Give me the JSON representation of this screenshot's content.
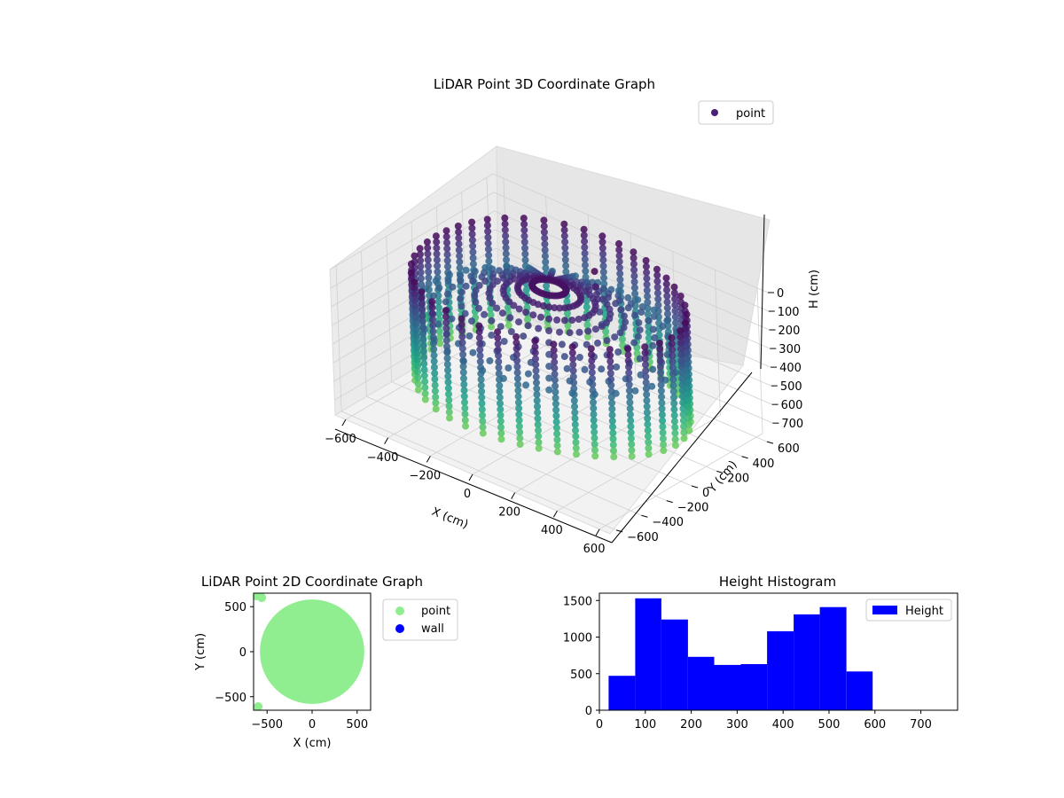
{
  "figure": {
    "background": "#ffffff"
  },
  "chart_data": [
    {
      "type": "scatter",
      "projection": "3d",
      "title": "LiDAR Point 3D Coordinate Graph",
      "xlabel": "X (cm)",
      "ylabel": "Y (cm)",
      "zlabel": "H (cm)",
      "xlim": [
        -650,
        650
      ],
      "ylim": [
        -650,
        650
      ],
      "zlim": [
        780,
        0
      ],
      "z_inverted": true,
      "xticks": [
        -600,
        -400,
        -200,
        0,
        200,
        400,
        600
      ],
      "yticks": [
        -600,
        -400,
        -200,
        0,
        200,
        400,
        600
      ],
      "zticks": [
        0,
        100,
        200,
        300,
        400,
        500,
        600,
        700
      ],
      "legend": {
        "entries": [
          "point"
        ],
        "position": "top-right"
      },
      "colormap": "viridis",
      "marker_color": "#482173",
      "grid": true,
      "series": [
        {
          "name": "point",
          "shape": "cylindrical ring of radius ~580 cm, height range 20–600 cm, sampled in 44 vertical scan columns, plus inward radial scan rays and a few outlier points",
          "ring_radius": 580,
          "columns": 44,
          "h_range": [
            20,
            600
          ],
          "outliers": [
            {
              "x": 80,
              "y": 230,
              "h": 0
            },
            {
              "x": 100,
              "y": 200,
              "h": 60
            },
            {
              "x": 120,
              "y": 180,
              "h": 110
            },
            {
              "x": 140,
              "y": 160,
              "h": 160
            },
            {
              "x": 160,
              "y": 140,
              "h": 210
            },
            {
              "x": -650,
              "y": 100,
              "h": 560
            },
            {
              "x": -640,
              "y": 60,
              "h": 520
            },
            {
              "x": -600,
              "y": 50,
              "h": 490
            }
          ]
        }
      ]
    },
    {
      "type": "scatter",
      "title": "LiDAR Point 2D Coordinate Graph",
      "xlabel": "X (cm)",
      "ylabel": "Y (cm)",
      "xlim": [
        -650,
        650
      ],
      "ylim": [
        -650,
        650
      ],
      "xticks": [
        -500,
        0,
        500
      ],
      "yticks": [
        -500,
        0,
        500
      ],
      "legend": {
        "entries": [
          "point",
          "wall"
        ],
        "position": "outside-right"
      },
      "grid": false,
      "series": [
        {
          "name": "point",
          "color": "#90ee90",
          "shape": "filled disc of radius ~580 cm centered at origin"
        },
        {
          "name": "wall",
          "color": "#0000ff",
          "points": []
        }
      ]
    },
    {
      "type": "bar",
      "subtype": "histogram",
      "title": "Height Histogram",
      "xlim": [
        0,
        780
      ],
      "ylim": [
        0,
        1600
      ],
      "xticks": [
        0,
        100,
        200,
        300,
        400,
        500,
        600,
        700
      ],
      "yticks": [
        0,
        500,
        1000,
        1500
      ],
      "legend": {
        "entries": [
          "Height"
        ],
        "position": "top-right"
      },
      "grid": false,
      "series": [
        {
          "name": "Height",
          "color": "#0000ff",
          "bin_edges": [
            20,
            78,
            135,
            193,
            250,
            308,
            365,
            423,
            480,
            538,
            595
          ],
          "values": [
            470,
            1530,
            1240,
            730,
            620,
            630,
            1080,
            1310,
            1410,
            530
          ]
        }
      ]
    }
  ]
}
